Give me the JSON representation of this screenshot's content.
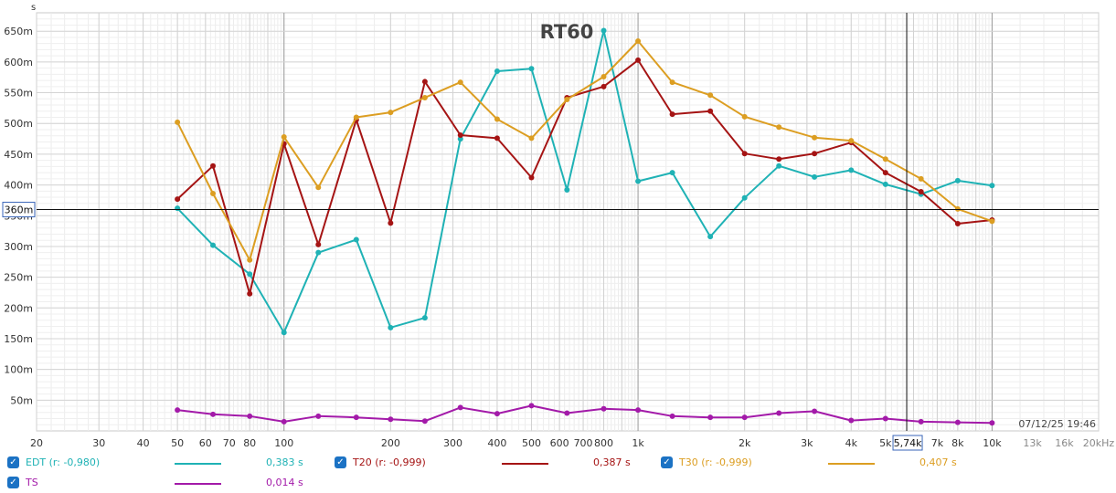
{
  "chart_data": {
    "type": "line",
    "title": "RT60",
    "ylabel": "s",
    "xscale": "log",
    "xlim": [
      20,
      20000
    ],
    "ylim": [
      0,
      0.68
    ],
    "grid": true,
    "x_tick_labels": [
      {
        "x": 20,
        "label": "20"
      },
      {
        "x": 30,
        "label": "30"
      },
      {
        "x": 40,
        "label": "40"
      },
      {
        "x": 50,
        "label": "50"
      },
      {
        "x": 60,
        "label": "60"
      },
      {
        "x": 70,
        "label": "70"
      },
      {
        "x": 80,
        "label": "80"
      },
      {
        "x": 100,
        "label": "100"
      },
      {
        "x": 200,
        "label": "200"
      },
      {
        "x": 300,
        "label": "300"
      },
      {
        "x": 400,
        "label": "400"
      },
      {
        "x": 500,
        "label": "500"
      },
      {
        "x": 600,
        "label": "600"
      },
      {
        "x": 700,
        "label": "700"
      },
      {
        "x": 800,
        "label": "800"
      },
      {
        "x": 1000,
        "label": "1k"
      },
      {
        "x": 2000,
        "label": "2k"
      },
      {
        "x": 3000,
        "label": "3k"
      },
      {
        "x": 4000,
        "label": "4k"
      },
      {
        "x": 5000,
        "label": "5k"
      },
      {
        "x": 7000,
        "label": "7k"
      },
      {
        "x": 8000,
        "label": "8k"
      },
      {
        "x": 10000,
        "label": "10k"
      },
      {
        "x": 13000,
        "label": "13k"
      },
      {
        "x": 16000,
        "label": "16k"
      },
      {
        "x": 20000,
        "label": "20kHz"
      }
    ],
    "y_tick_labels": [
      {
        "y": 0.05,
        "label": "50m"
      },
      {
        "y": 0.1,
        "label": "100m"
      },
      {
        "y": 0.15,
        "label": "150m"
      },
      {
        "y": 0.2,
        "label": "200m"
      },
      {
        "y": 0.25,
        "label": "250m"
      },
      {
        "y": 0.3,
        "label": "300m"
      },
      {
        "y": 0.35,
        "label": "350m"
      },
      {
        "y": 0.4,
        "label": "400m"
      },
      {
        "y": 0.45,
        "label": "450m"
      },
      {
        "y": 0.5,
        "label": "500m"
      },
      {
        "y": 0.55,
        "label": "550m"
      },
      {
        "y": 0.6,
        "label": "600m"
      },
      {
        "y": 0.65,
        "label": "650m"
      }
    ],
    "cursor": {
      "x": 5740,
      "y": 0.36,
      "x_label": "5,74k",
      "y_label": "360m"
    },
    "timestamp": "07/12/25 19:46",
    "x": [
      50,
      63,
      80,
      100,
      125,
      160,
      200,
      250,
      315,
      400,
      500,
      630,
      800,
      1000,
      1250,
      1600,
      2000,
      2500,
      3150,
      4000,
      5000,
      6300,
      8000,
      10000
    ],
    "series": [
      {
        "name": "EDT",
        "color": "#1fb2b5",
        "values": [
          0.362,
          0.302,
          0.255,
          0.16,
          0.29,
          0.311,
          0.168,
          0.184,
          0.475,
          0.585,
          0.589,
          0.392,
          0.651,
          0.406,
          0.42,
          0.316,
          0.379,
          0.431,
          0.413,
          0.424,
          0.401,
          0.385,
          0.407,
          0.399
        ]
      },
      {
        "name": "T20",
        "color": "#a51414",
        "values": [
          0.377,
          0.431,
          0.223,
          0.467,
          0.303,
          0.506,
          0.338,
          0.568,
          0.481,
          0.476,
          0.412,
          0.542,
          0.56,
          0.603,
          0.515,
          0.52,
          0.451,
          0.442,
          0.451,
          0.469,
          0.42,
          0.389,
          0.337,
          0.343
        ]
      },
      {
        "name": "T30",
        "color": "#dc9e22",
        "values": [
          0.502,
          0.386,
          0.278,
          0.478,
          0.396,
          0.51,
          0.518,
          0.542,
          0.567,
          0.507,
          0.476,
          0.539,
          0.576,
          0.634,
          0.567,
          0.546,
          0.511,
          0.494,
          0.477,
          0.472,
          0.442,
          0.41,
          0.361,
          0.341
        ]
      },
      {
        "name": "TS",
        "color": "#a31aa9",
        "values": [
          0.034,
          0.027,
          0.024,
          0.015,
          0.024,
          0.022,
          0.019,
          0.016,
          0.038,
          0.028,
          0.041,
          0.029,
          0.036,
          0.034,
          0.024,
          0.022,
          0.022,
          0.029,
          0.032,
          0.017,
          0.02,
          0.015,
          0.014,
          0.013
        ]
      }
    ]
  },
  "legend": [
    {
      "label": "EDT (r: -0,980)",
      "value": "0,383 s",
      "checked": "✓",
      "color": "#1fb2b5"
    },
    {
      "label": "T20 (r: -0,999)",
      "value": "0,387 s",
      "checked": "✓",
      "color": "#a51414"
    },
    {
      "label": "T30 (r: -0,999)",
      "value": "0,407 s",
      "checked": "✓",
      "color": "#dc9e22"
    },
    {
      "label": "TS",
      "value": "0,014 s",
      "checked": "✓",
      "color": "#a31aa9"
    }
  ]
}
